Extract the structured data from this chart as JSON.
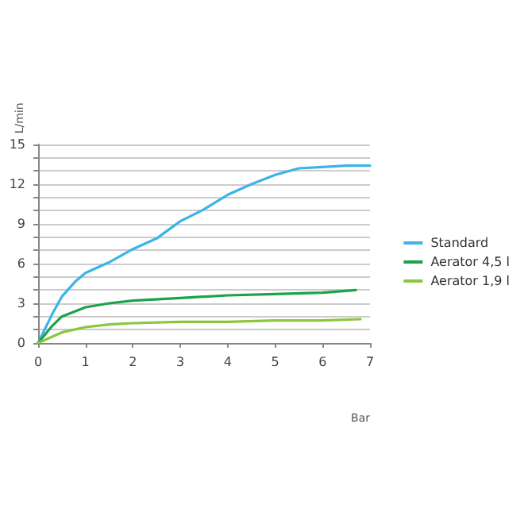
{
  "chart_data": {
    "type": "line",
    "xlabel": "Bar",
    "ylabel": "L/min",
    "xlim": [
      0,
      7
    ],
    "xticks": [
      0,
      1,
      2,
      3,
      4,
      5,
      6,
      7
    ],
    "ylim": [
      0,
      15
    ],
    "yticks": [
      0,
      {
        "value": 1,
        "label": null
      },
      {
        "value": 2,
        "label": null
      },
      3,
      {
        "value": 4,
        "label": null
      },
      {
        "value": 5,
        "label": null
      },
      6,
      {
        "value": 7,
        "label": null
      },
      {
        "value": 8,
        "label": null
      },
      9,
      {
        "value": 10,
        "label": null
      },
      {
        "value": 11,
        "label": null
      },
      12,
      {
        "value": 13,
        "label": null
      },
      {
        "value": 14,
        "label": null
      },
      15
    ],
    "grid": "y",
    "legend": "right",
    "marker": "none",
    "line_style": "solid",
    "series": [
      {
        "name": "Standard",
        "color": "#3cb4e5",
        "x": [
          0,
          0.3,
          0.5,
          0.8,
          1,
          1.5,
          2,
          2.5,
          3,
          3.5,
          4,
          4.5,
          5,
          5.5,
          6,
          6.5,
          7
        ],
        "values": [
          0,
          2.2,
          3.5,
          4.7,
          5.3,
          6.1,
          7.1,
          7.9,
          9.2,
          10.1,
          11.2,
          12,
          12.7,
          13.2,
          13.3,
          13.4,
          13.4
        ]
      },
      {
        "name": "Aerator 4,5 l",
        "color": "#1aa34a",
        "x": [
          0,
          0.3,
          0.5,
          1,
          1.5,
          2,
          3,
          4,
          5,
          6,
          6.7
        ],
        "values": [
          0,
          1.3,
          2,
          2.7,
          3,
          3.2,
          3.4,
          3.6,
          3.7,
          3.8,
          4
        ]
      },
      {
        "name": "Aerator 1,9 l",
        "color": "#8cc63f",
        "x": [
          0,
          0.5,
          1,
          1.5,
          2,
          3,
          4,
          5,
          6,
          6.8
        ],
        "values": [
          0,
          0.8,
          1.2,
          1.4,
          1.5,
          1.6,
          1.6,
          1.7,
          1.7,
          1.8
        ]
      }
    ]
  }
}
